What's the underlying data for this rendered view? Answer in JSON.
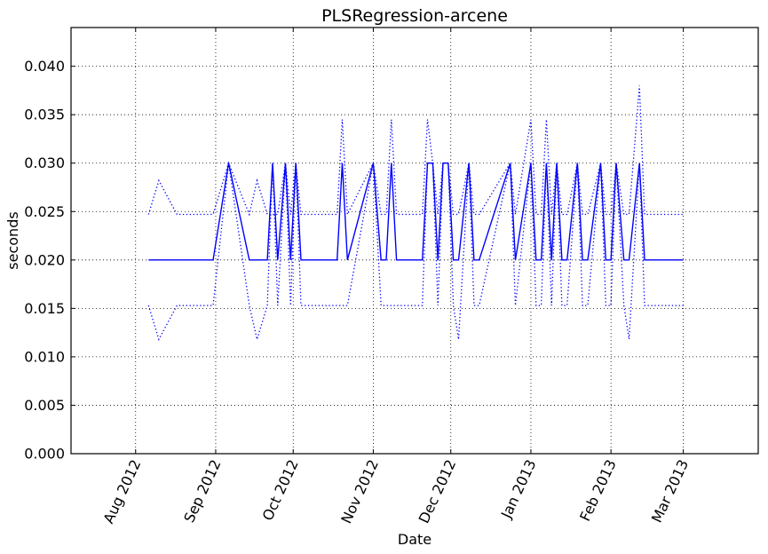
{
  "chart_data": {
    "type": "line",
    "title": "PLSRegression-arcene",
    "xlabel": "Date",
    "ylabel": "seconds",
    "x_ticks": [
      "2012-08-01",
      "2012-09-01",
      "2012-10-01",
      "2012-11-01",
      "2012-12-01",
      "2013-01-01",
      "2013-02-01",
      "2013-03-01"
    ],
    "x_tick_labels": [
      "Aug 2012",
      "Sep 2012",
      "Oct 2012",
      "Nov 2012",
      "Dec 2012",
      "Jan 2013",
      "Feb 2013",
      "Mar 2013"
    ],
    "xlim": [
      "2012-07-07",
      "2013-03-30"
    ],
    "ylim": [
      0,
      0.044
    ],
    "y_ticks": [
      0.0,
      0.005,
      0.01,
      0.015,
      0.02,
      0.025,
      0.03,
      0.035,
      0.04
    ],
    "y_tick_labels": [
      "0.000",
      "0.005",
      "0.010",
      "0.015",
      "0.020",
      "0.025",
      "0.030",
      "0.035",
      "0.040"
    ],
    "grid": true,
    "series": [
      {
        "style": "solid",
        "color": "#0000ff",
        "x": [
          "2012-08-06",
          "2012-08-10",
          "2012-08-17",
          "2012-08-31",
          "2012-09-06",
          "2012-09-14",
          "2012-09-17",
          "2012-09-21",
          "2012-09-23",
          "2012-09-25",
          "2012-09-28",
          "2012-09-30",
          "2012-10-02",
          "2012-10-04",
          "2012-10-18",
          "2012-10-20",
          "2012-10-22",
          "2012-11-01",
          "2012-11-04",
          "2012-11-06",
          "2012-11-08",
          "2012-11-10",
          "2012-11-20",
          "2012-11-22",
          "2012-11-24",
          "2012-11-26",
          "2012-11-28",
          "2012-11-30",
          "2012-12-02",
          "2012-12-04",
          "2012-12-08",
          "2012-12-10",
          "2012-12-12",
          "2012-12-24",
          "2012-12-26",
          "2013-01-01",
          "2013-01-03",
          "2013-01-05",
          "2013-01-07",
          "2013-01-09",
          "2013-01-11",
          "2013-01-13",
          "2013-01-15",
          "2013-01-19",
          "2013-01-21",
          "2013-01-23",
          "2013-01-28",
          "2013-01-30",
          "2013-02-01",
          "2013-02-03",
          "2013-02-06",
          "2013-02-08",
          "2013-02-12",
          "2013-02-14",
          "2013-02-17",
          "2013-03-01"
        ],
        "y": [
          0.02,
          0.02,
          0.02,
          0.02,
          0.03,
          0.02,
          0.02,
          0.02,
          0.03,
          0.02,
          0.03,
          0.02,
          0.03,
          0.02,
          0.02,
          0.03,
          0.02,
          0.03,
          0.02,
          0.02,
          0.03,
          0.02,
          0.02,
          0.03,
          0.03,
          0.02,
          0.03,
          0.03,
          0.02,
          0.02,
          0.03,
          0.02,
          0.02,
          0.03,
          0.02,
          0.03,
          0.02,
          0.02,
          0.03,
          0.02,
          0.03,
          0.02,
          0.02,
          0.03,
          0.02,
          0.02,
          0.03,
          0.02,
          0.02,
          0.03,
          0.02,
          0.02,
          0.03,
          0.02,
          0.02,
          0.02
        ]
      },
      {
        "style": "dotted",
        "color": "#0000ff",
        "x": [
          "2012-08-06",
          "2012-08-10",
          "2012-08-17",
          "2012-08-31",
          "2012-09-06",
          "2012-09-14",
          "2012-09-17",
          "2012-09-21",
          "2012-09-23",
          "2012-09-25",
          "2012-09-28",
          "2012-09-30",
          "2012-10-02",
          "2012-10-04",
          "2012-10-18",
          "2012-10-20",
          "2012-10-22",
          "2012-11-01",
          "2012-11-04",
          "2012-11-06",
          "2012-11-08",
          "2012-11-10",
          "2012-11-20",
          "2012-11-22",
          "2012-11-24",
          "2012-11-26",
          "2012-11-28",
          "2012-11-30",
          "2012-12-02",
          "2012-12-04",
          "2012-12-08",
          "2012-12-10",
          "2012-12-12",
          "2012-12-24",
          "2012-12-26",
          "2013-01-01",
          "2013-01-03",
          "2013-01-05",
          "2013-01-07",
          "2013-01-09",
          "2013-01-11",
          "2013-01-13",
          "2013-01-15",
          "2013-01-19",
          "2013-01-21",
          "2013-01-23",
          "2013-01-28",
          "2013-01-30",
          "2013-02-01",
          "2013-02-03",
          "2013-02-06",
          "2013-02-08",
          "2013-02-12",
          "2013-02-14",
          "2013-02-17",
          "2013-03-01"
        ],
        "y": [
          0.0247,
          0.0282,
          0.0247,
          0.0247,
          0.03,
          0.0247,
          0.0282,
          0.0247,
          0.0247,
          0.0247,
          0.03,
          0.0247,
          0.03,
          0.0247,
          0.0247,
          0.0345,
          0.0247,
          0.03,
          0.0247,
          0.0247,
          0.0345,
          0.0247,
          0.0247,
          0.0345,
          0.03,
          0.0247,
          0.03,
          0.03,
          0.0247,
          0.0247,
          0.03,
          0.0247,
          0.0247,
          0.03,
          0.0247,
          0.0345,
          0.0247,
          0.0247,
          0.0345,
          0.0247,
          0.03,
          0.0247,
          0.0247,
          0.03,
          0.0247,
          0.0247,
          0.03,
          0.0247,
          0.0247,
          0.03,
          0.0247,
          0.0247,
          0.038,
          0.0247,
          0.0247,
          0.0247
        ]
      },
      {
        "style": "dotted",
        "color": "#0000ff",
        "x": [
          "2012-08-06",
          "2012-08-10",
          "2012-08-17",
          "2012-08-31",
          "2012-09-06",
          "2012-09-14",
          "2012-09-17",
          "2012-09-21",
          "2012-09-23",
          "2012-09-25",
          "2012-09-28",
          "2012-09-30",
          "2012-10-02",
          "2012-10-04",
          "2012-10-18",
          "2012-10-20",
          "2012-10-22",
          "2012-11-01",
          "2012-11-04",
          "2012-11-06",
          "2012-11-08",
          "2012-11-10",
          "2012-11-20",
          "2012-11-22",
          "2012-11-24",
          "2012-11-26",
          "2012-11-28",
          "2012-11-30",
          "2012-12-02",
          "2012-12-04",
          "2012-12-08",
          "2012-12-10",
          "2012-12-12",
          "2012-12-24",
          "2012-12-26",
          "2013-01-01",
          "2013-01-03",
          "2013-01-05",
          "2013-01-07",
          "2013-01-09",
          "2013-01-11",
          "2013-01-13",
          "2013-01-15",
          "2013-01-19",
          "2013-01-21",
          "2013-01-23",
          "2013-01-28",
          "2013-01-30",
          "2013-02-01",
          "2013-02-03",
          "2013-02-06",
          "2013-02-08",
          "2013-02-12",
          "2013-02-14",
          "2013-02-17",
          "2013-03-01"
        ],
        "y": [
          0.0153,
          0.0118,
          0.0153,
          0.0153,
          0.03,
          0.0153,
          0.0118,
          0.0153,
          0.03,
          0.0153,
          0.03,
          0.0153,
          0.03,
          0.0153,
          0.0153,
          0.0153,
          0.0153,
          0.03,
          0.0153,
          0.0153,
          0.0153,
          0.0153,
          0.0153,
          0.03,
          0.03,
          0.0153,
          0.03,
          0.03,
          0.0153,
          0.0118,
          0.03,
          0.0153,
          0.0153,
          0.03,
          0.0153,
          0.03,
          0.0153,
          0.0153,
          0.03,
          0.0153,
          0.03,
          0.0153,
          0.0153,
          0.03,
          0.0153,
          0.0153,
          0.03,
          0.0153,
          0.0153,
          0.03,
          0.0153,
          0.0118,
          0.03,
          0.0153,
          0.0153,
          0.0153
        ]
      }
    ]
  }
}
